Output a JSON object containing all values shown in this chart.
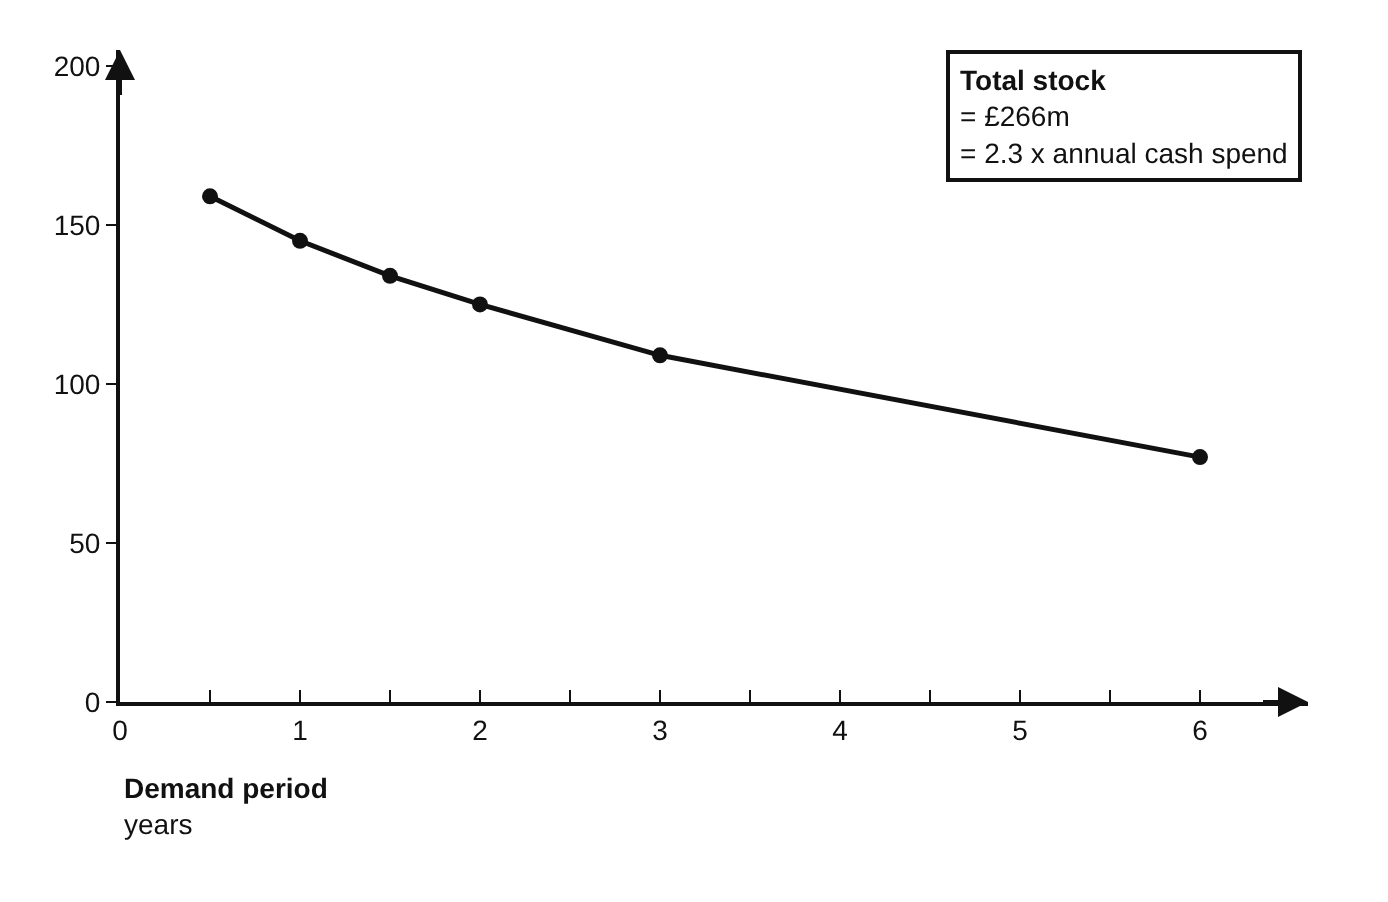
{
  "chart_data": {
    "type": "line",
    "x": [
      0.5,
      1,
      1.5,
      2,
      3,
      6
    ],
    "series": [
      {
        "color": "#111111",
        "values": [
          159,
          145,
          134,
          125,
          109,
          77
        ]
      }
    ],
    "xlabel": "Demand period\nyears",
    "annotations": [
      "Total stock\n= £266m\n= 2.3 x annual cash spend"
    ],
    "xlim": [
      0,
      6.6
    ],
    "ylim": [
      0,
      205
    ],
    "xticks": [
      0,
      {
        "value": 0.5,
        "label": null
      },
      1,
      {
        "value": 1.5,
        "label": null
      },
      2,
      {
        "value": 2.5,
        "label": null
      },
      3,
      {
        "value": 3.5,
        "label": null
      },
      4,
      {
        "value": 4.5,
        "label": null
      },
      5,
      {
        "value": 5.5,
        "label": null
      },
      6
    ],
    "yticks": [
      0,
      50,
      100,
      150,
      200
    ],
    "marker": "circle",
    "line_style": "solid"
  }
}
